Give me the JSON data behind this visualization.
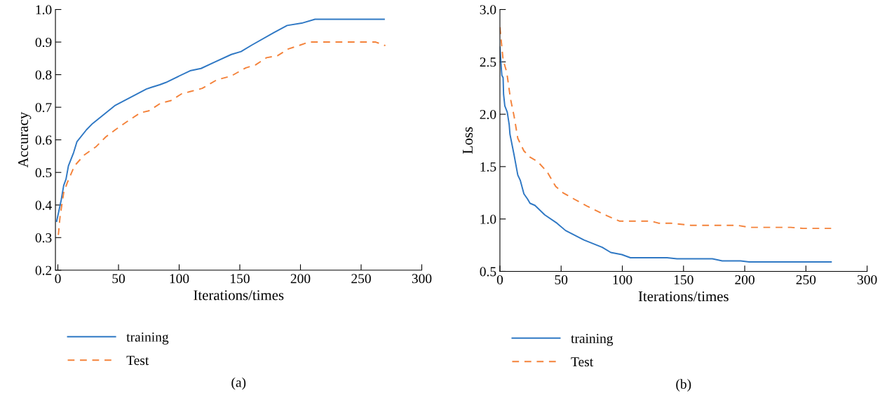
{
  "chart_data": [
    {
      "type": "line",
      "xlabel": "Iterations/times",
      "ylabel": "Accuracy",
      "xlim": [
        -2,
        300
      ],
      "xticks": [
        0,
        50,
        100,
        150,
        200,
        250,
        300
      ],
      "ylim": [
        0.2,
        1.0
      ],
      "yticks": [
        0.2,
        0.3,
        0.4,
        0.5,
        0.6,
        0.7,
        0.8,
        0.9,
        {
          "value": 1,
          "label": "1.0"
        }
      ],
      "legend": "bottom",
      "grid": false,
      "annotations": [
        "(a)"
      ],
      "series": [
        {
          "name": "training",
          "color": "#2f78c4",
          "line_style": "solid",
          "x": [
            -1,
            2.8,
            4.8,
            6.7,
            8.7,
            13,
            15.7,
            23.6,
            28.6,
            47.4,
            73,
            77,
            84,
            89,
            109,
            118,
            129,
            143,
            151,
            160,
            178,
            189,
            201,
            212,
            269
          ],
          "values": [
            0.35,
            0.416,
            0.46,
            0.479,
            0.52,
            0.561,
            0.594,
            0.631,
            0.65,
            0.706,
            0.756,
            0.761,
            0.769,
            0.776,
            0.812,
            0.819,
            0.838,
            0.862,
            0.871,
            0.891,
            0.929,
            0.951,
            0.958,
            0.97,
            0.97
          ]
        },
        {
          "name": "Test",
          "color": "#f4823a",
          "line_style": "dashed",
          "x": [
            0.4,
            1.8,
            4.8,
            7.7,
            13.7,
            21.6,
            31.5,
            39.5,
            47.4,
            59,
            68,
            75,
            85,
            93,
            102,
            109,
            119,
            131,
            143,
            155,
            163,
            172,
            181,
            190,
            200,
            207,
            262,
            270
          ],
          "values": [
            0.308,
            0.364,
            0.438,
            0.468,
            0.52,
            0.553,
            0.579,
            0.609,
            0.631,
            0.661,
            0.683,
            0.689,
            0.713,
            0.72,
            0.741,
            0.748,
            0.758,
            0.784,
            0.796,
            0.821,
            0.83,
            0.852,
            0.858,
            0.879,
            0.891,
            0.9,
            0.9,
            0.889
          ]
        }
      ]
    },
    {
      "type": "line",
      "xlabel": "Iterations/times",
      "ylabel": "Loss",
      "xlim": [
        0,
        300
      ],
      "xticks": [
        0,
        50,
        100,
        150,
        200,
        250,
        300
      ],
      "ylim": [
        0.5,
        3.0
      ],
      "yticks": [
        0.5,
        {
          "value": 1,
          "label": "1.0"
        },
        1.5,
        {
          "value": 2,
          "label": "2.0"
        },
        2.5,
        {
          "value": 3,
          "label": "3.0"
        }
      ],
      "legend": "bottom",
      "grid": false,
      "annotations": [
        "(b)"
      ],
      "series": [
        {
          "name": "training",
          "color": "#2f78c4",
          "line_style": "solid",
          "x": [
            0,
            1.2,
            1.6,
            2.6,
            3,
            4,
            6,
            7.6,
            8.2,
            11.6,
            14.6,
            16.6,
            19.6,
            22.6,
            24.6,
            28.6,
            36.6,
            46.6,
            53.6,
            68.6,
            83.6,
            90.6,
            99.6,
            106.6,
            136.6,
            144.6,
            173.6,
            181.6,
            196.6,
            203.6,
            270.6
          ],
          "values": [
            2.64,
            2.43,
            2.37,
            2.35,
            2.19,
            2.08,
            2.02,
            1.9,
            1.81,
            1.61,
            1.42,
            1.37,
            1.24,
            1.19,
            1.15,
            1.13,
            1.04,
            0.96,
            0.89,
            0.8,
            0.73,
            0.68,
            0.66,
            0.63,
            0.63,
            0.62,
            0.62,
            0.6,
            0.6,
            0.59,
            0.59
          ]
        },
        {
          "name": "Test",
          "color": "#f4823a",
          "line_style": "dashed",
          "x": [
            0,
            2.6,
            5.6,
            8.6,
            11.6,
            14.6,
            19.6,
            24.6,
            30.6,
            38.6,
            45.6,
            51.6,
            60.6,
            71.6,
            87.6,
            97.6,
            123.6,
            129.6,
            139.6,
            155.6,
            193.6,
            203.6,
            237.6,
            247.6,
            270.6
          ],
          "values": [
            2.83,
            2.52,
            2.4,
            2.15,
            1.98,
            1.77,
            1.65,
            1.59,
            1.55,
            1.45,
            1.31,
            1.25,
            1.19,
            1.12,
            1.03,
            0.98,
            0.98,
            0.96,
            0.96,
            0.94,
            0.94,
            0.92,
            0.92,
            0.91,
            0.91
          ]
        }
      ]
    }
  ]
}
